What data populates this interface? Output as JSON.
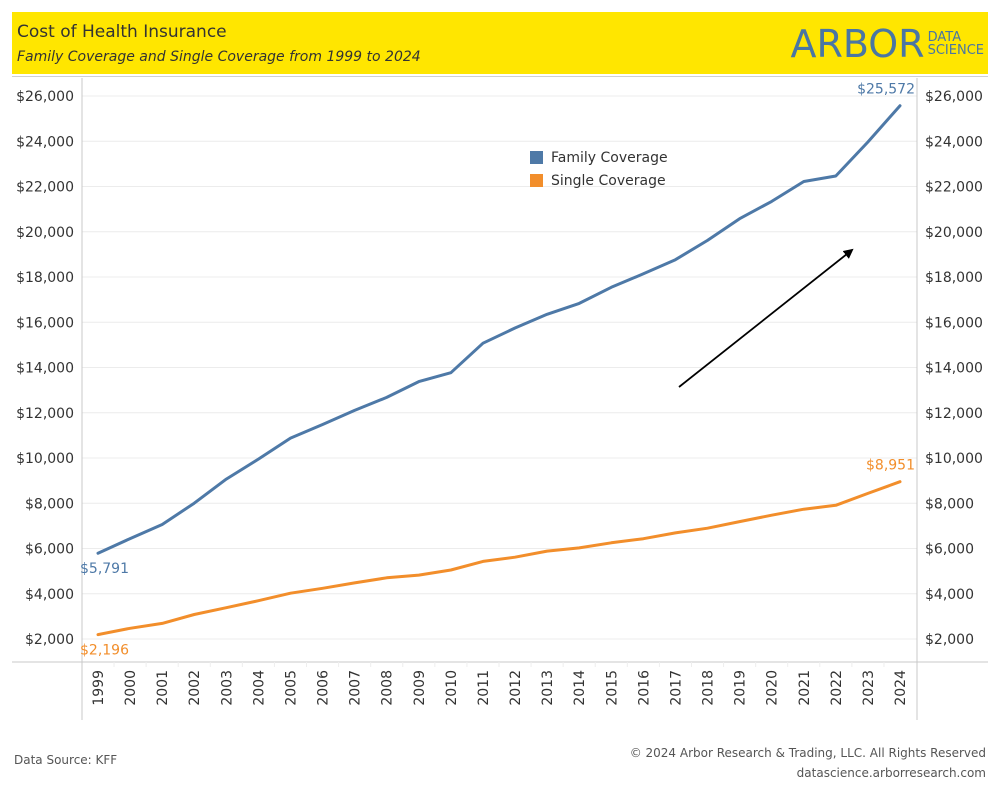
{
  "header": {
    "title": "Cost of Health Insurance",
    "subtitle": "Family Coverage and Single Coverage from 1999 to 2024",
    "logo_main": "ARBOR",
    "logo_sub_1": "DATA",
    "logo_sub_2": "SCIENCE"
  },
  "colors": {
    "header_bg": "#ffe600",
    "family": "#4e79a7",
    "single": "#f28e2b",
    "logo": "#4a76a3"
  },
  "legend": {
    "items": [
      {
        "label": "Family Coverage",
        "color": "#4e79a7"
      },
      {
        "label": "Single Coverage",
        "color": "#f28e2b"
      }
    ]
  },
  "footer": {
    "source": "Data Source: KFF",
    "copyright": "© 2024 Arbor Research & Trading, LLC. All Rights Reserved",
    "website": "datascience.arborresearch.com"
  },
  "chart_data": {
    "type": "line",
    "title": "Cost of Health Insurance",
    "subtitle": "Family Coverage and Single Coverage from 1999 to 2024",
    "xlabel": "",
    "ylabel": "",
    "x": [
      "1999",
      "2000",
      "2001",
      "2002",
      "2003",
      "2004",
      "2005",
      "2006",
      "2007",
      "2008",
      "2009",
      "2010",
      "2011",
      "2012",
      "2013",
      "2014",
      "2015",
      "2016",
      "2017",
      "2018",
      "2019",
      "2020",
      "2021",
      "2022",
      "2023",
      "2024"
    ],
    "ylim": [
      1000,
      26600
    ],
    "yticks": [
      2000,
      4000,
      6000,
      8000,
      10000,
      12000,
      14000,
      16000,
      18000,
      20000,
      22000,
      24000,
      26000
    ],
    "ytick_labels": [
      "$2,000",
      "$4,000",
      "$6,000",
      "$8,000",
      "$10,000",
      "$12,000",
      "$14,000",
      "$16,000",
      "$18,000",
      "$20,000",
      "$22,000",
      "$24,000",
      "$26,000"
    ],
    "dual_axis": true,
    "grid": "horizontal",
    "legend_position": "top-center",
    "series": [
      {
        "name": "Family Coverage",
        "color": "#4e79a7",
        "values": [
          5791,
          6438,
          7061,
          8003,
          9068,
          9950,
          10880,
          11480,
          12106,
          12680,
          13375,
          13770,
          15073,
          15745,
          16351,
          16834,
          17545,
          18142,
          18764,
          19616,
          20576,
          21342,
          22221,
          22463,
          23968,
          25572
        ],
        "start_label": "$5,791",
        "end_label": "$25,572"
      },
      {
        "name": "Single Coverage",
        "color": "#f28e2b",
        "values": [
          2196,
          2471,
          2689,
          3083,
          3383,
          3695,
          4024,
          4242,
          4479,
          4704,
          4824,
          5049,
          5429,
          5615,
          5884,
          6025,
          6251,
          6435,
          6690,
          6896,
          7188,
          7470,
          7739,
          7911,
          8435,
          8951
        ],
        "start_label": "$2,196",
        "end_label": "$8,951"
      }
    ],
    "annotations": [
      {
        "type": "arrow",
        "direction": "up-right",
        "meaning": "upward trend"
      }
    ]
  }
}
